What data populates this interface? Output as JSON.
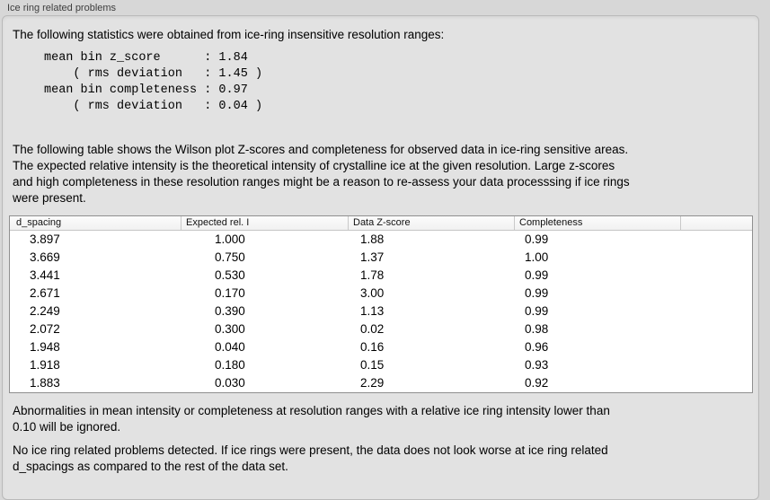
{
  "window": {
    "group_title": "Ice ring related problems"
  },
  "report": {
    "intro": "The following statistics were obtained from ice-ring insensitive resolution ranges:",
    "stats_block": "mean bin z_score      : 1.84\n    ( rms deviation   : 1.45 )\nmean bin completeness : 0.97\n    ( rms deviation   : 0.04 )",
    "table_description": "The following table shows the Wilson plot Z-scores and completeness for observed data in ice-ring sensitive areas.\nThe expected relative intensity is the theoretical intensity of crystalline ice at the given resolution. Large z-scores\nand high completeness in these resolution ranges might be a reason to re-assess your data processsing if ice rings\nwere present.",
    "ignore_note": "Abnormalities in mean intensity or completeness at resolution ranges with a relative ice ring intensity lower than\n0.10 will be ignored.",
    "conclusion": "No ice ring related problems detected. If ice rings were present, the data does not look worse at ice ring related\nd_spacings as compared to the rest of the data set."
  },
  "table": {
    "columns": [
      "d_spacing",
      "Expected rel. I",
      "Data Z-score",
      "Completeness"
    ],
    "rows": [
      [
        "3.897",
        "1.000",
        "1.88",
        "0.99"
      ],
      [
        "3.669",
        "0.750",
        "1.37",
        "1.00"
      ],
      [
        "3.441",
        "0.530",
        "1.78",
        "0.99"
      ],
      [
        "2.671",
        "0.170",
        "3.00",
        "0.99"
      ],
      [
        "2.249",
        "0.390",
        "1.13",
        "0.99"
      ],
      [
        "2.072",
        "0.300",
        "0.02",
        "0.98"
      ],
      [
        "1.948",
        "0.040",
        "0.16",
        "0.96"
      ],
      [
        "1.918",
        "0.180",
        "0.15",
        "0.93"
      ],
      [
        "1.883",
        "0.030",
        "2.29",
        "0.92"
      ]
    ]
  }
}
